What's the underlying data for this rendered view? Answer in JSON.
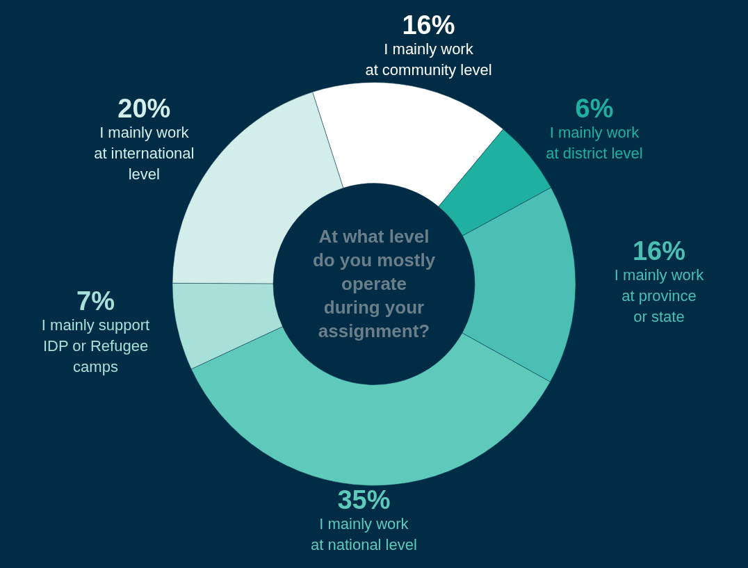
{
  "chart_data": {
    "type": "donut",
    "title": "At what level\ndo you mostly\noperate\nduring your\nassignment?",
    "categories": [
      "I mainly work\nat community level",
      "I mainly work\nat district level",
      "I mainly work\nat province\nor state",
      "I mainly work\nat national level",
      "I mainly support\nIDP or Refugee\ncamps",
      "I mainly work\nat international\nlevel"
    ],
    "values": [
      16,
      6,
      16,
      35,
      7,
      20
    ],
    "value_labels": [
      "16%",
      "6%",
      "16%",
      "35%",
      "7%",
      "20%"
    ],
    "colors": [
      "#ffffff",
      "#20b0a0",
      "#4bbfb3",
      "#5fc9bc",
      "#a6e0d8",
      "#d3eeea"
    ]
  }
}
